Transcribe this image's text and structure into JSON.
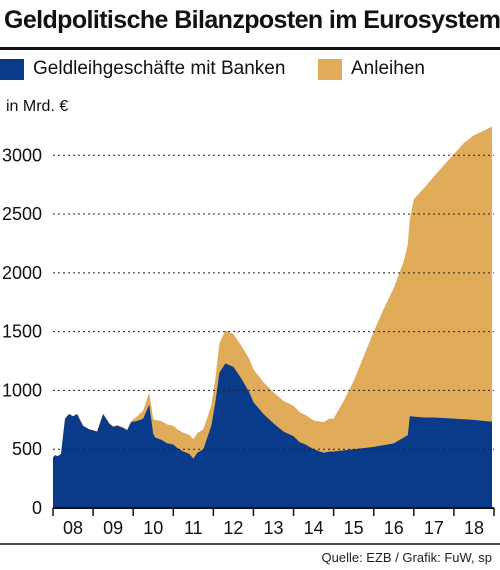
{
  "title": "Geldpolitische Bilanzposten im Eurosystem",
  "legend": [
    {
      "label": "Geldleihgeschäfte mit Banken",
      "color": "#0a3a8a"
    },
    {
      "label": "Anleihen",
      "color": "#e0ac5a"
    }
  ],
  "unit": "in Mrd. €",
  "source": "Quelle: EZB / Grafik: FuW, sp",
  "chart_data": {
    "type": "area",
    "stacked": true,
    "title": "Geldpolitische Bilanzposten im Eurosystem",
    "ylabel": "in Mrd. €",
    "xlabel": "",
    "ylim": [
      0,
      3300
    ],
    "xlim": [
      2008.0,
      2019.0
    ],
    "y_ticks": [
      0,
      500,
      1000,
      1500,
      2000,
      2500,
      3000
    ],
    "x_tick_labels": [
      "08",
      "09",
      "10",
      "11",
      "12",
      "13",
      "14",
      "15",
      "16",
      "17",
      "18"
    ],
    "grid": "horizontal dotted",
    "legend_position": "top",
    "series": [
      {
        "name": "Geldleihgeschäfte mit Banken",
        "color": "#0a3a8a",
        "x": [
          2008.0,
          2008.05,
          2008.12,
          2008.2,
          2008.3,
          2008.4,
          2008.5,
          2008.6,
          2008.75,
          2008.9,
          2009.0,
          2009.1,
          2009.25,
          2009.4,
          2009.5,
          2009.6,
          2009.75,
          2009.85,
          2009.95,
          2010.1,
          2010.25,
          2010.4,
          2010.5,
          2010.55,
          2010.7,
          2010.85,
          2011.0,
          2011.1,
          2011.25,
          2011.4,
          2011.5,
          2011.6,
          2011.75,
          2011.85,
          2011.95,
          2012.05,
          2012.15,
          2012.3,
          2012.5,
          2012.7,
          2012.9,
          2013.0,
          2013.25,
          2013.5,
          2013.75,
          2014.0,
          2014.15,
          2014.3,
          2014.5,
          2014.75,
          2014.9,
          2015.0,
          2015.5,
          2016.0,
          2016.5,
          2016.75,
          2016.85,
          2016.9,
          2017.25,
          2017.5,
          2018.0,
          2018.5,
          2018.75,
          2018.95
        ],
        "values": [
          430,
          450,
          440,
          460,
          760,
          800,
          780,
          800,
          700,
          670,
          660,
          650,
          800,
          720,
          690,
          700,
          680,
          660,
          730,
          740,
          760,
          880,
          630,
          600,
          580,
          550,
          540,
          510,
          480,
          460,
          420,
          470,
          500,
          600,
          700,
          900,
          1150,
          1230,
          1200,
          1100,
          980,
          900,
          800,
          720,
          650,
          610,
          560,
          540,
          500,
          470,
          480,
          480,
          500,
          520,
          550,
          600,
          620,
          780,
          770,
          770,
          760,
          750,
          740,
          735
        ]
      },
      {
        "name": "Anleihen",
        "color": "#e0ac5a",
        "x": [
          2008.0,
          2008.9,
          2009.5,
          2009.95,
          2010.1,
          2010.4,
          2010.5,
          2010.55,
          2010.7,
          2010.85,
          2011.0,
          2011.25,
          2011.5,
          2011.75,
          2011.85,
          2011.95,
          2012.05,
          2012.15,
          2012.3,
          2012.5,
          2012.7,
          2012.9,
          2013.0,
          2013.25,
          2013.5,
          2013.75,
          2014.0,
          2014.15,
          2014.3,
          2014.5,
          2014.75,
          2014.9,
          2015.0,
          2015.25,
          2015.5,
          2015.75,
          2016.0,
          2016.25,
          2016.5,
          2016.75,
          2016.9,
          2017.0,
          2017.25,
          2017.5,
          2017.75,
          2018.0,
          2018.25,
          2018.5,
          2018.75,
          2018.95
        ],
        "values": [
          0,
          0,
          5,
          10,
          40,
          100,
          130,
          150,
          160,
          160,
          160,
          160,
          165,
          170,
          170,
          175,
          200,
          250,
          280,
          280,
          280,
          285,
          280,
          270,
          265,
          260,
          260,
          255,
          250,
          245,
          260,
          280,
          280,
          420,
          580,
          780,
          980,
          1160,
          1320,
          1500,
          1680,
          1850,
          1950,
          2050,
          2150,
          2250,
          2350,
          2420,
          2470,
          2510
        ]
      }
    ]
  }
}
